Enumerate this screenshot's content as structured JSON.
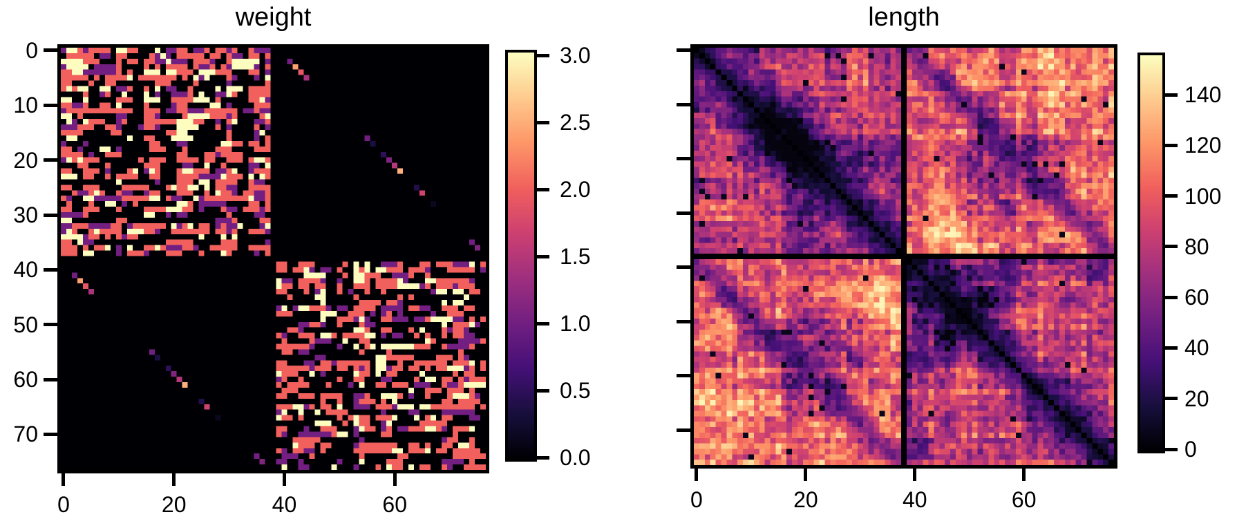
{
  "figure": {
    "background": "#ffffff",
    "text_color": "#000000"
  },
  "colormap": {
    "name": "magma",
    "anchors": [
      "#000004",
      "#180f3e",
      "#451077",
      "#721f81",
      "#9f2f7f",
      "#cd4071",
      "#f1605d",
      "#fd9668",
      "#feca8d",
      "#fcfdbf"
    ]
  },
  "chart_data": [
    {
      "type": "heatmap",
      "title": "weight",
      "matrix_shape": [
        77,
        77
      ],
      "xticks": [
        0,
        20,
        40,
        60
      ],
      "xticklabels": [
        "0",
        "20",
        "40",
        "60"
      ],
      "yticks": [
        0,
        10,
        20,
        30,
        40,
        50,
        60,
        70
      ],
      "yticklabels": [
        "0",
        "10",
        "20",
        "30",
        "40",
        "50",
        "60",
        "70"
      ],
      "y_labels_shown": true,
      "vmin": 0,
      "vmax": 3,
      "grid": false,
      "legend": "colorbar-right",
      "colorbar": {
        "tickvals": [
          3.0,
          2.5,
          2.0,
          1.5,
          1.0,
          0.5,
          0.0
        ],
        "ticklabels": [
          "3.0",
          "2.5",
          "2.0",
          "1.5",
          "1.0",
          "0.5",
          "0.0"
        ]
      },
      "structure_summary": "Block-diagonal synaptic-weight matrix: two dense blocks (indices 0-37 and 39-76) of discrete weights mostly 2 (salmon), some 3 (cream) and 1 (purple) on a 0 (black) background; empty separator row/column at index 38; off-diagonal quadrants are empty except sparse contralateral-pair dots along the (i, i+39) diagonals.",
      "render_params": {
        "size": 77,
        "divider_index": 38,
        "seed": 11,
        "fill_factor": 1.8,
        "run_persistence": 0.35,
        "p_value3": 0.18,
        "p_value1": 0.22,
        "row_activity_min": 0.18,
        "row_activity_pow": 1.5,
        "contralateral_dots": [
          {
            "r": 2,
            "c": 41,
            "v": 1.0
          },
          {
            "r": 3,
            "c": 42,
            "v": 2.4
          },
          {
            "r": 4,
            "c": 43,
            "v": 1.9
          },
          {
            "r": 5,
            "c": 44,
            "v": 1.4
          },
          {
            "r": 16,
            "c": 55,
            "v": 1.0
          },
          {
            "r": 17,
            "c": 56,
            "v": 0.35
          },
          {
            "r": 19,
            "c": 58,
            "v": 0.5
          },
          {
            "r": 20,
            "c": 59,
            "v": 1.1
          },
          {
            "r": 21,
            "c": 60,
            "v": 1.5
          },
          {
            "r": 22,
            "c": 61,
            "v": 2.5
          },
          {
            "r": 25,
            "c": 64,
            "v": 0.4
          },
          {
            "r": 26,
            "c": 65,
            "v": 1.7
          },
          {
            "r": 28,
            "c": 67,
            "v": 0.15
          },
          {
            "r": 35,
            "c": 74,
            "v": 1.0
          },
          {
            "r": 36,
            "c": 75,
            "v": 1.1
          }
        ]
      }
    },
    {
      "type": "heatmap",
      "title": "length",
      "matrix_shape": [
        77,
        77
      ],
      "xticks": [
        0,
        20,
        40,
        60
      ],
      "xticklabels": [
        "0",
        "20",
        "40",
        "60"
      ],
      "yticks": [
        0,
        10,
        20,
        30,
        40,
        50,
        60,
        70
      ],
      "yticklabels": [],
      "y_labels_shown": false,
      "vmin": 0,
      "vmax": 155,
      "grid": false,
      "legend": "colorbar-right",
      "colorbar": {
        "tickvals": [
          140,
          120,
          100,
          80,
          60,
          40,
          20,
          0
        ],
        "ticklabels": [
          "140",
          "120",
          "100",
          "80",
          "60",
          "40",
          "20",
          "0"
        ]
      },
      "structure_summary": "Symmetric connection-length matrix: zero (black) main diagonal, empty row/column at index 38 forming a cross divider; ipsilateral quadrants (top-left mean ~64, bottom-right mean ~60, purple) are darker than contralateral quadrants (means ~101, orange); faint dark secondary diagonal at offset 39; dark blobs near (17,16), (21,55), (49,49) and bright patches near (9,20), (33,47), (74,55).",
      "render_params": {
        "size": 77,
        "divider_index": 38,
        "seed": 7,
        "quadrant_base": {
          "tl": 64,
          "tr": 101,
          "bl": 101,
          "br": 60
        },
        "noise_amp": 44,
        "patch_amp": 40,
        "stripe_amp": 22,
        "near_diag": {
          "floor": 0.18,
          "range": 8
        },
        "contra_diag": {
          "offset": 39,
          "floor": 0.5,
          "range": 5
        },
        "dark_dot_threshold": 0.985,
        "clamp": [
          3,
          153
        ],
        "blobs": [
          {
            "r": 17,
            "c": 16,
            "rad": 5,
            "amp": -45
          },
          {
            "r": 9,
            "c": 20,
            "rad": 5,
            "amp": 28
          },
          {
            "r": 30,
            "c": 6,
            "rad": 5,
            "amp": 24
          },
          {
            "r": 21,
            "c": 55,
            "rad": 6,
            "amp": -48
          },
          {
            "r": 33,
            "c": 47,
            "rad": 5,
            "amp": 22
          },
          {
            "r": 5,
            "c": 66,
            "rad": 5,
            "amp": 26
          },
          {
            "r": 49,
            "c": 49,
            "rad": 5,
            "amp": -26
          },
          {
            "r": 54,
            "c": 60,
            "rad": 4,
            "amp": 26
          },
          {
            "r": 68,
            "c": 47,
            "rad": 6,
            "amp": 24
          },
          {
            "r": 74,
            "c": 55,
            "rad": 4,
            "amp": 28
          },
          {
            "r": 62,
            "c": 73,
            "rad": 4,
            "amp": 22
          }
        ]
      }
    }
  ]
}
